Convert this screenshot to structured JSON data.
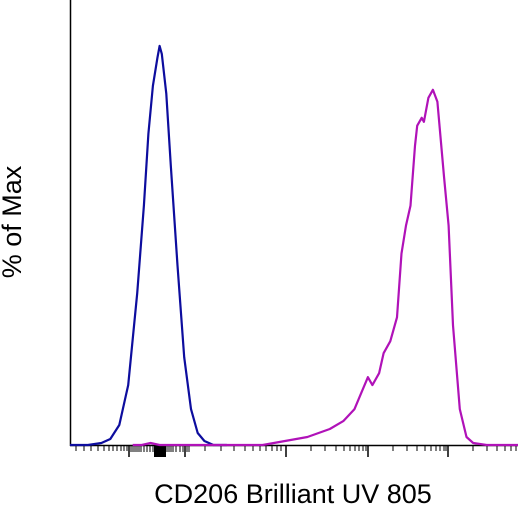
{
  "chart_data": {
    "type": "line",
    "title": "",
    "xlabel": "CD206 Brilliant UV 805",
    "ylabel": "% of Max",
    "x_scale": "biexponential",
    "x_tick_labels_shown": false,
    "y_tick_labels_shown": false,
    "ylim": [
      0,
      100
    ],
    "grid": false,
    "legend": "none",
    "series": [
      {
        "color": "#0d0d9e",
        "points": [
          [
            0.0,
            0
          ],
          [
            0.04,
            0
          ],
          [
            0.07,
            0.5
          ],
          [
            0.09,
            1.5
          ],
          [
            0.11,
            5
          ],
          [
            0.13,
            15
          ],
          [
            0.15,
            38
          ],
          [
            0.165,
            60
          ],
          [
            0.175,
            78
          ],
          [
            0.185,
            90
          ],
          [
            0.195,
            97
          ],
          [
            0.2,
            100
          ],
          [
            0.205,
            98
          ],
          [
            0.215,
            88
          ],
          [
            0.225,
            70
          ],
          [
            0.24,
            45
          ],
          [
            0.255,
            22
          ],
          [
            0.27,
            9
          ],
          [
            0.285,
            3
          ],
          [
            0.3,
            1
          ],
          [
            0.32,
            0
          ],
          [
            0.35,
            0
          ]
        ]
      },
      {
        "color": "#b012b8",
        "points": [
          [
            0.14,
            0
          ],
          [
            0.16,
            0
          ],
          [
            0.18,
            0.5
          ],
          [
            0.2,
            0
          ],
          [
            0.4,
            0
          ],
          [
            0.43,
            0
          ],
          [
            0.48,
            1
          ],
          [
            0.53,
            2
          ],
          [
            0.58,
            4
          ],
          [
            0.61,
            6
          ],
          [
            0.635,
            9
          ],
          [
            0.65,
            13
          ],
          [
            0.665,
            17
          ],
          [
            0.675,
            15
          ],
          [
            0.69,
            18
          ],
          [
            0.7,
            23
          ],
          [
            0.715,
            26
          ],
          [
            0.73,
            32
          ],
          [
            0.74,
            48
          ],
          [
            0.75,
            55
          ],
          [
            0.76,
            60
          ],
          [
            0.77,
            75
          ],
          [
            0.775,
            80
          ],
          [
            0.785,
            82
          ],
          [
            0.79,
            81
          ],
          [
            0.8,
            87
          ],
          [
            0.81,
            89
          ],
          [
            0.82,
            86
          ],
          [
            0.835,
            67
          ],
          [
            0.845,
            55
          ],
          [
            0.855,
            30
          ],
          [
            0.87,
            9
          ],
          [
            0.885,
            2
          ],
          [
            0.9,
            0.5
          ],
          [
            0.93,
            0
          ],
          [
            1.0,
            0
          ]
        ]
      }
    ]
  }
}
